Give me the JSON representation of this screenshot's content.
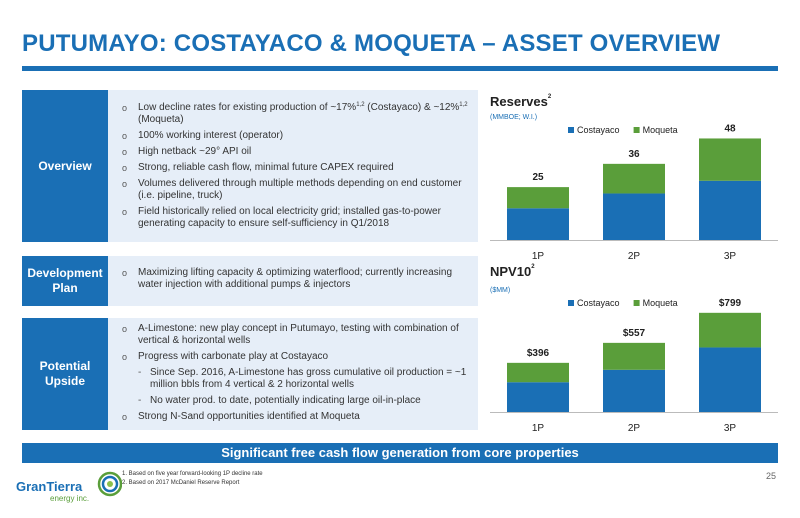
{
  "title": "PUTUMAYO: COSTAYACO & MOQUETA – ASSET OVERVIEW",
  "rows": [
    {
      "label": "Overview",
      "items": [
        {
          "level": 1,
          "text": "Low decline rates for existing production of ~17%",
          "sup": "1,2",
          "text2": " (Costayaco) & ~12%",
          "sup2": "1,2",
          "text3": " (Moqueta)"
        },
        {
          "level": 1,
          "text": "100% working interest (operator)"
        },
        {
          "level": 1,
          "text": "High netback ~29° API oil"
        },
        {
          "level": 1,
          "text": "Strong, reliable cash flow, minimal future CAPEX required"
        },
        {
          "level": 1,
          "text": "Volumes delivered through multiple methods depending on end customer (i.e. pipeline, truck)"
        },
        {
          "level": 1,
          "text": "Field historically relied on local electricity grid; installed gas-to-power generating capacity to ensure self-sufficiency in Q1/2018"
        }
      ]
    },
    {
      "label": "Development Plan",
      "items": [
        {
          "level": 1,
          "text": "Maximizing lifting capacity & optimizing waterflood; currently increasing water injection with additional pumps & injectors"
        }
      ]
    },
    {
      "label": "Potential Upside",
      "items": [
        {
          "level": 1,
          "text": "A-Limestone: new play concept in Putumayo, testing with combination of vertical & horizontal wells"
        },
        {
          "level": 1,
          "text": "Progress with carbonate play at Costayaco"
        },
        {
          "level": 2,
          "text": "Since Sep. 2016, A-Limestone has gross cumulative oil production = ~1 million bbls from 4 vertical & 2 horizontal wells"
        },
        {
          "level": 2,
          "text": "No water prod. to date, potentially indicating large oil-in-place"
        },
        {
          "level": 1,
          "text": "Strong N-Sand opportunities identified at Moqueta"
        }
      ]
    }
  ],
  "chart_data": [
    {
      "type": "bar",
      "stacked": true,
      "title": "Reserves",
      "title_sup": "2",
      "unit": "(MMBOE; W.I.)",
      "categories": [
        "1P",
        "2P",
        "3P"
      ],
      "series": [
        {
          "name": "Costayaco",
          "values": [
            15,
            22,
            28
          ],
          "color": "#1a6fb5"
        },
        {
          "name": "Moqueta",
          "values": [
            10,
            14,
            20
          ],
          "color": "#5a9e3a"
        }
      ],
      "totals": [
        "25",
        "36",
        "48"
      ],
      "ylim": [
        0,
        52
      ],
      "legend": "top"
    },
    {
      "type": "bar",
      "stacked": true,
      "title": "NPV10",
      "title_sup": "2",
      "unit": "($MM)",
      "categories": [
        "1P",
        "2P",
        "3P"
      ],
      "series": [
        {
          "name": "Costayaco",
          "values": [
            240,
            340,
            520
          ],
          "color": "#1a6fb5"
        },
        {
          "name": "Moqueta",
          "values": [
            156,
            217,
            279
          ],
          "color": "#5a9e3a"
        }
      ],
      "totals": [
        "$396",
        "$557",
        "$799"
      ],
      "ylim": [
        0,
        870
      ],
      "legend": "top"
    }
  ],
  "banner": "Significant free cash flow generation from core properties",
  "footnotes": [
    "1.  Based on five year forward-looking 1P decline rate",
    "2.  Based on 2017 McDaniel Reserve Report"
  ],
  "page_number": "25",
  "logo": {
    "line1": "GranTierra",
    "line2": "energy inc."
  }
}
